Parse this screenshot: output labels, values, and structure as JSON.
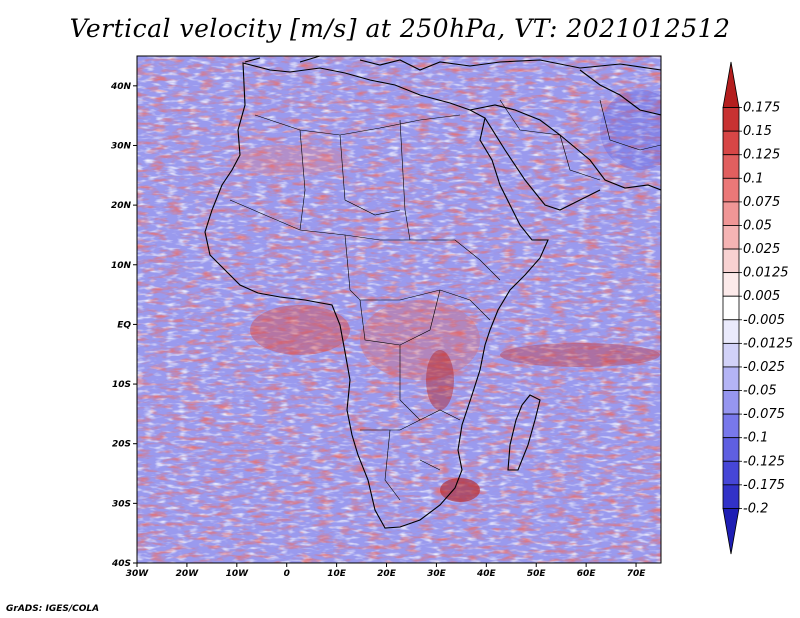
{
  "title": "Vertical velocity [m/s] at 250hPa, VT: 2021012512",
  "credit": "GrADS: IGES/COLA",
  "map": {
    "lon_range": [
      -30,
      75
    ],
    "lat_range": [
      -40,
      45
    ],
    "lat_labels": [
      "40N",
      "30N",
      "20N",
      "10N",
      "EQ",
      "10S",
      "20S",
      "30S",
      "40S"
    ],
    "lon_labels": [
      "30W",
      "20W",
      "10W",
      "0",
      "10E",
      "20E",
      "30E",
      "40E",
      "50E",
      "60E",
      "70E"
    ],
    "variable": "vertical velocity",
    "units": "m/s",
    "level": "250hPa",
    "valid_time": "2021012512"
  },
  "colorbar": {
    "levels": [
      "0.175",
      "0.15",
      "0.125",
      "0.1",
      "0.075",
      "0.05",
      "0.025",
      "0.0125",
      "0.005",
      "-0.005",
      "-0.0125",
      "-0.025",
      "-0.05",
      "-0.075",
      "-0.1",
      "-0.125",
      "-0.175",
      "-0.2"
    ],
    "colors": [
      "#b41e1e",
      "#c83232",
      "#d74646",
      "#e15f5f",
      "#eb7878",
      "#f09696",
      "#f5b4b4",
      "#f8d2d2",
      "#fceaea",
      "#ffffff",
      "#eaeafc",
      "#d2d2f8",
      "#b4b4f5",
      "#9696f0",
      "#7878eb",
      "#5f5fe1",
      "#4646d7",
      "#3232c8",
      "#1e1eb4"
    ]
  }
}
